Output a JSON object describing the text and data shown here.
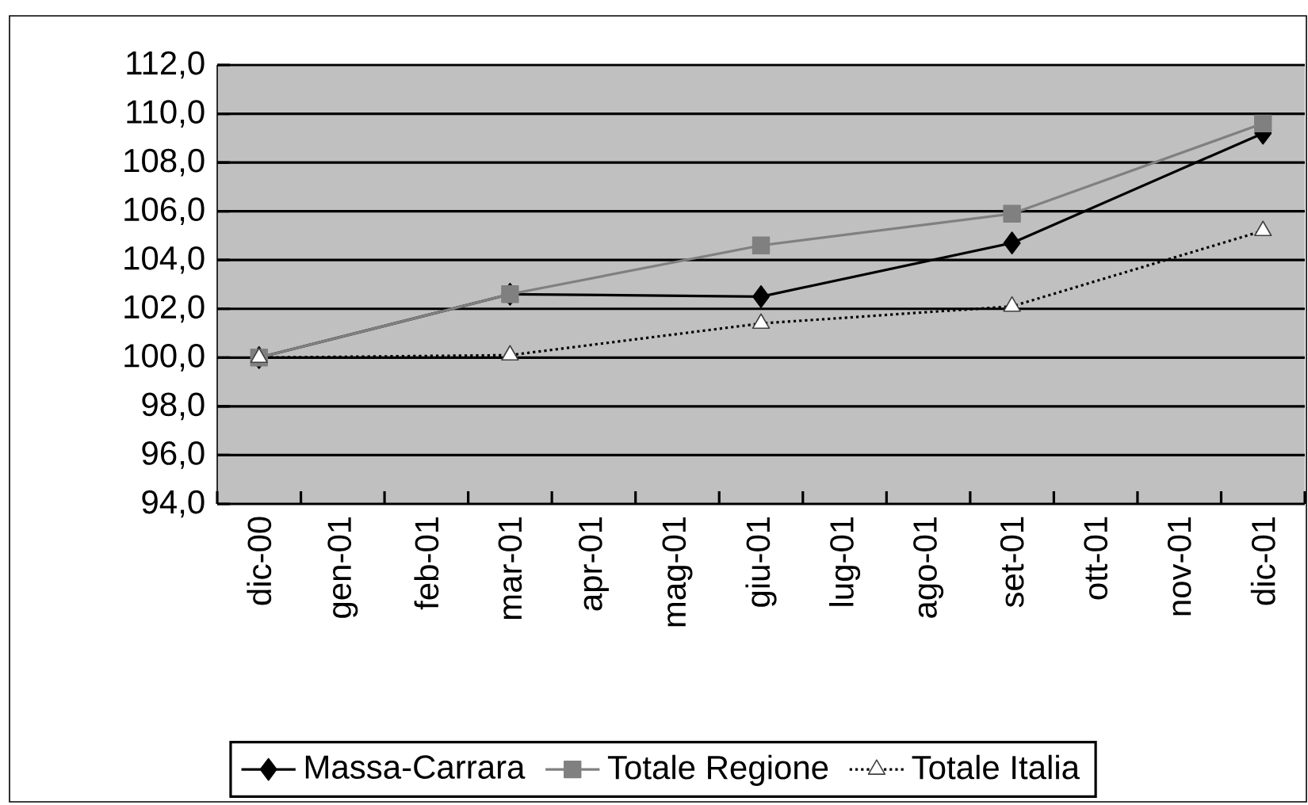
{
  "chart_data": {
    "type": "line",
    "categories": [
      "dic-00",
      "gen-01",
      "feb-01",
      "mar-01",
      "apr-01",
      "mag-01",
      "giu-01",
      "lug-01",
      "ago-01",
      "set-01",
      "ott-01",
      "nov-01",
      "dic-01"
    ],
    "series": [
      {
        "name": "Massa-Carrara",
        "color": "#000000",
        "marker": "diamond",
        "values": [
          100.0,
          null,
          null,
          102.6,
          null,
          null,
          102.5,
          null,
          null,
          104.7,
          null,
          null,
          109.2
        ]
      },
      {
        "name": "Totale Regione",
        "color": "#808080",
        "marker": "square",
        "values": [
          100.0,
          null,
          null,
          102.6,
          null,
          null,
          104.6,
          null,
          null,
          105.9,
          null,
          null,
          109.6
        ]
      },
      {
        "name": "Totale Italia",
        "color": "#ffffff",
        "marker": "triangle",
        "line_style": "dotted",
        "values": [
          100.0,
          null,
          null,
          100.1,
          null,
          null,
          101.4,
          null,
          null,
          102.1,
          null,
          null,
          105.2
        ]
      }
    ],
    "ylim": [
      94,
      112
    ],
    "yticks": [
      {
        "value": 94,
        "label": "94,0"
      },
      {
        "value": 96,
        "label": "96,0"
      },
      {
        "value": 98,
        "label": "98,0"
      },
      {
        "value": 100,
        "label": "100,0"
      },
      {
        "value": 102,
        "label": "102,0"
      },
      {
        "value": 104,
        "label": "104,0"
      },
      {
        "value": 106,
        "label": "106,0"
      },
      {
        "value": 108,
        "label": "108,0"
      },
      {
        "value": 110,
        "label": "110,0"
      },
      {
        "value": 112,
        "label": "112,0"
      }
    ],
    "grid": "y",
    "legend": "bottom"
  }
}
